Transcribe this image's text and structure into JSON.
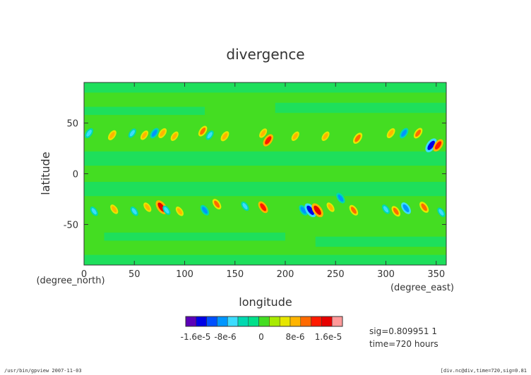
{
  "chart_data": {
    "type": "heatmap",
    "title": "divergence",
    "xlabel": "longitude",
    "ylabel": "latitude",
    "x_unit": "(degree_east)",
    "y_unit": "(degree_north)",
    "xlim": [
      0,
      360
    ],
    "ylim": [
      -90,
      90
    ],
    "x_ticks": [
      0,
      50,
      100,
      150,
      200,
      250,
      300,
      350
    ],
    "y_ticks": [
      -50,
      0,
      50
    ],
    "background_value": 0,
    "colorbar": {
      "colors": [
        "#5b00b8",
        "#0000e6",
        "#0050ff",
        "#0096ff",
        "#3cdcff",
        "#00d8b0",
        "#00e08a",
        "#44dd22",
        "#a8ea00",
        "#e6e600",
        "#ffb400",
        "#ff6a00",
        "#ff1a00",
        "#e60000",
        "#ff9a9a"
      ],
      "tick_labels": [
        "-1.6e-5",
        "-8e-6",
        "0",
        "8e-6",
        "1.6e-5"
      ]
    },
    "features": [
      {
        "lon": 5,
        "lat": 40,
        "value": -9e-06
      },
      {
        "lon": 28,
        "lat": 38,
        "value": 9e-06
      },
      {
        "lon": 48,
        "lat": 40,
        "value": -8e-06
      },
      {
        "lon": 60,
        "lat": 38,
        "value": 8e-06
      },
      {
        "lon": 70,
        "lat": 40,
        "value": -1e-05
      },
      {
        "lon": 78,
        "lat": 40,
        "value": 9e-06
      },
      {
        "lon": 90,
        "lat": 37,
        "value": 8e-06
      },
      {
        "lon": 118,
        "lat": 42,
        "value": 1e-05
      },
      {
        "lon": 125,
        "lat": 38,
        "value": -8e-06
      },
      {
        "lon": 140,
        "lat": 37,
        "value": 9e-06
      },
      {
        "lon": 178,
        "lat": 40,
        "value": 8e-06
      },
      {
        "lon": 183,
        "lat": 33,
        "value": 1.3e-05
      },
      {
        "lon": 210,
        "lat": 37,
        "value": 8e-06
      },
      {
        "lon": 240,
        "lat": 37,
        "value": 8e-06
      },
      {
        "lon": 272,
        "lat": 35,
        "value": 1.1e-05
      },
      {
        "lon": 305,
        "lat": 40,
        "value": 9e-06
      },
      {
        "lon": 318,
        "lat": 40,
        "value": -1e-05
      },
      {
        "lon": 332,
        "lat": 40,
        "value": 1e-05
      },
      {
        "lon": 345,
        "lat": 28,
        "value": -1.6e-05
      },
      {
        "lon": 352,
        "lat": 28,
        "value": 1.3e-05
      },
      {
        "lon": 10,
        "lat": -37,
        "value": -8e-06
      },
      {
        "lon": 30,
        "lat": -35,
        "value": 8e-06
      },
      {
        "lon": 50,
        "lat": -37,
        "value": -8e-06
      },
      {
        "lon": 63,
        "lat": -33,
        "value": 8e-06
      },
      {
        "lon": 77,
        "lat": -33,
        "value": 1.6e-05
      },
      {
        "lon": 82,
        "lat": -36,
        "value": -8e-06
      },
      {
        "lon": 95,
        "lat": -37,
        "value": 8e-06
      },
      {
        "lon": 120,
        "lat": -36,
        "value": -1e-05
      },
      {
        "lon": 132,
        "lat": -30,
        "value": 1e-05
      },
      {
        "lon": 160,
        "lat": -32,
        "value": -8e-06
      },
      {
        "lon": 178,
        "lat": -33,
        "value": 1.2e-05
      },
      {
        "lon": 218,
        "lat": -36,
        "value": -1e-05
      },
      {
        "lon": 225,
        "lat": -36,
        "value": -1.6e-05
      },
      {
        "lon": 232,
        "lat": -36,
        "value": 1.6e-05
      },
      {
        "lon": 245,
        "lat": -33,
        "value": 8e-06
      },
      {
        "lon": 255,
        "lat": -24,
        "value": -1e-05
      },
      {
        "lon": 268,
        "lat": -36,
        "value": 1e-05
      },
      {
        "lon": 300,
        "lat": -35,
        "value": -8e-06
      },
      {
        "lon": 310,
        "lat": -37,
        "value": 1e-05
      },
      {
        "lon": 320,
        "lat": -34,
        "value": -1.2e-05
      },
      {
        "lon": 338,
        "lat": -33,
        "value": 1.1e-05
      },
      {
        "lon": 355,
        "lat": -38,
        "value": -8e-06
      }
    ]
  },
  "info": {
    "sig": "sig=0.809951  1",
    "time": "time=720 hours"
  },
  "footer": {
    "left": "/usr/bin/gpview   2007-11-03",
    "right": "[div.nc@div,time=720,sig=0.81"
  }
}
